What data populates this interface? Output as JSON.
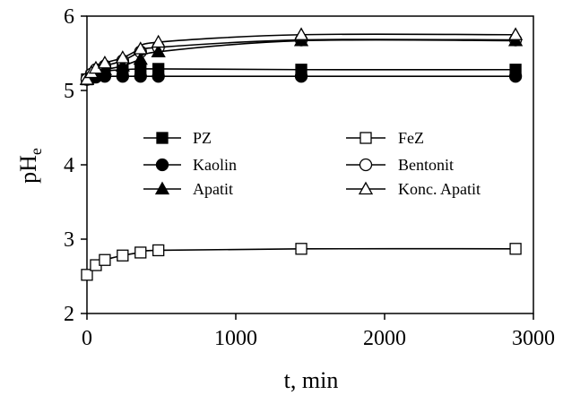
{
  "chart_data": {
    "type": "line",
    "title": "",
    "xlabel": "t, min",
    "ylabel_main": "pH",
    "ylabel_sub": "e",
    "xlim": [
      0,
      3000
    ],
    "ylim": [
      2,
      6
    ],
    "xticks": [
      0,
      1000,
      2000,
      3000
    ],
    "yticks": [
      2,
      3,
      4,
      5,
      6
    ],
    "grid": false,
    "legend_position": "center",
    "series": [
      {
        "name": "PZ",
        "marker": "square",
        "fill": "#000000",
        "x": [
          0,
          30,
          60,
          120,
          240,
          360,
          480,
          1440,
          2880
        ],
        "y": [
          5.15,
          5.19,
          5.23,
          5.26,
          5.28,
          5.29,
          5.29,
          5.28,
          5.28
        ]
      },
      {
        "name": "FeZ",
        "marker": "square",
        "fill": "#ffffff",
        "x": [
          0,
          60,
          120,
          240,
          360,
          480,
          1440,
          2880
        ],
        "y": [
          2.52,
          2.65,
          2.72,
          2.78,
          2.82,
          2.85,
          2.87,
          2.87
        ]
      },
      {
        "name": "Kaolin",
        "marker": "circle",
        "fill": "#000000",
        "x": [
          0,
          30,
          60,
          120,
          240,
          360,
          480,
          1440,
          2880
        ],
        "y": [
          5.15,
          5.17,
          5.18,
          5.19,
          5.19,
          5.19,
          5.19,
          5.19,
          5.19
        ]
      },
      {
        "name": "Bentonit",
        "marker": "circle",
        "fill": "#ffffff",
        "x": [
          0,
          30,
          60,
          120,
          240,
          360,
          480,
          1440,
          2880
        ],
        "y": [
          5.15,
          5.22,
          5.28,
          5.33,
          5.4,
          5.52,
          5.58,
          5.68,
          5.68
        ]
      },
      {
        "name": "Apatit",
        "marker": "triangle",
        "fill": "#000000",
        "x": [
          0,
          30,
          60,
          120,
          240,
          360,
          480,
          1440,
          2880
        ],
        "y": [
          5.15,
          5.2,
          5.24,
          5.28,
          5.33,
          5.42,
          5.52,
          5.67,
          5.67
        ]
      },
      {
        "name": "Konc. Apatit",
        "marker": "triangle",
        "fill": "#ffffff",
        "x": [
          0,
          30,
          60,
          120,
          240,
          360,
          480,
          1440,
          2880
        ],
        "y": [
          5.15,
          5.24,
          5.3,
          5.37,
          5.44,
          5.56,
          5.65,
          5.75,
          5.75
        ]
      }
    ]
  }
}
